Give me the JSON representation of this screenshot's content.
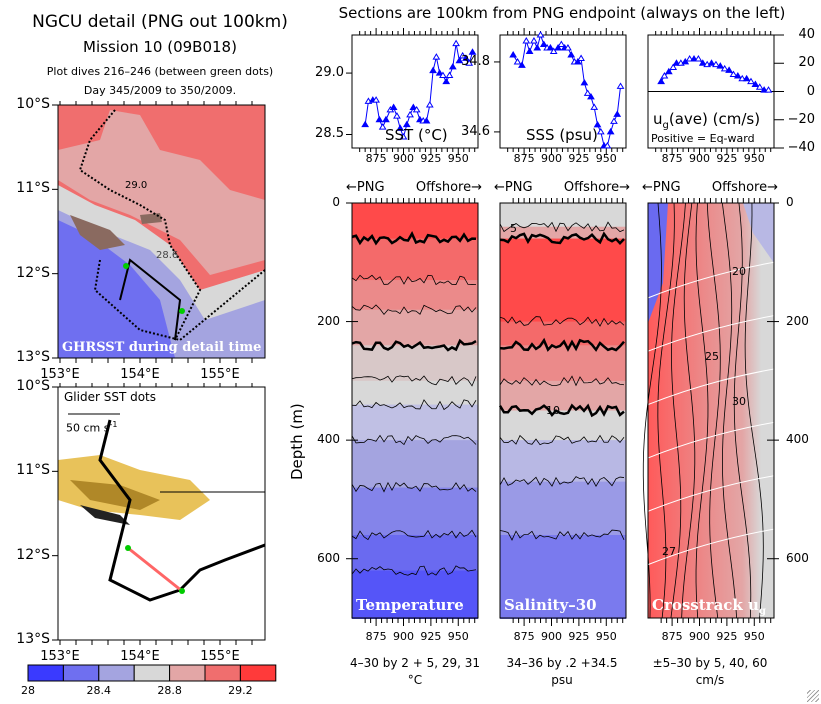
{
  "left": {
    "title": "NGCU detail (PNG out 100km)",
    "mission": "Mission 10 (09B018)",
    "dives": "Plot dives 216–246 (between green dots)",
    "days": "Day 345/2009 to 350/2009.",
    "lat_labels": [
      "10°S",
      "11°S",
      "12°S",
      "13°S"
    ],
    "lon_labels": [
      "153°E",
      "154°E",
      "155°E"
    ],
    "top_map_overlay": "GHRSST during detail time",
    "top_map_contour_labels": [
      "29.0",
      "28.6"
    ],
    "bottom_map_label": "Glider SST dots",
    "scale_label": "50 cm s",
    "scale_exp": "-1",
    "colorbar": {
      "labels": [
        "28",
        "28.4",
        "28.8",
        "29.2"
      ],
      "colors": [
        "#3a3aff",
        "#6f6ff0",
        "#a4a4e0",
        "#d8d8d8",
        "#e3a6a6",
        "#f06e6e",
        "#ff3a3a"
      ]
    }
  },
  "header": "Sections are 100km from PNG endpoint (always on the left)",
  "direction": {
    "left": "←PNG",
    "right": "Offshore→"
  },
  "chart_data": [
    {
      "type": "line",
      "title": "SST (°C)",
      "xlim": [
        853,
        968
      ],
      "ylim": [
        28.39,
        29.31
      ],
      "yticks": [
        "28.5",
        "29.0"
      ],
      "xticks": [
        "875",
        "900",
        "925",
        "950"
      ],
      "x": [
        865,
        868,
        872,
        875,
        878,
        881,
        884,
        888,
        891,
        894,
        897,
        900,
        903,
        906,
        909,
        912,
        915,
        918,
        921,
        924,
        927,
        930,
        933,
        936,
        939,
        942,
        945,
        948,
        951,
        954,
        957,
        960,
        963
      ],
      "y": [
        28.58,
        28.77,
        28.78,
        28.78,
        28.62,
        28.56,
        28.62,
        28.7,
        28.72,
        28.65,
        28.55,
        28.48,
        28.58,
        28.66,
        28.72,
        28.7,
        28.62,
        28.61,
        28.61,
        28.74,
        29.02,
        29.13,
        29.0,
        28.98,
        28.93,
        28.98,
        29.05,
        29.24,
        29.1,
        29.14,
        29.12,
        29.08,
        29.17
      ],
      "color": "#0000ff"
    },
    {
      "type": "line",
      "title": "SSS (psu)",
      "xlim": [
        853,
        968
      ],
      "ylim": [
        34.554,
        34.877
      ],
      "yticks": [
        "34.6",
        "34.8"
      ],
      "xticks": [
        "875",
        "900",
        "925",
        "950"
      ],
      "x": [
        865,
        869,
        873,
        877,
        880,
        884,
        887,
        890,
        893,
        896,
        899,
        902,
        906,
        909,
        912,
        915,
        918,
        921,
        924,
        927,
        930,
        933,
        936,
        939,
        942,
        945,
        948,
        951,
        954,
        957,
        960,
        963
      ],
      "y": [
        34.82,
        34.8,
        34.79,
        34.86,
        34.83,
        34.86,
        34.84,
        34.88,
        34.85,
        34.84,
        34.84,
        34.83,
        34.84,
        34.85,
        34.84,
        34.84,
        34.82,
        34.8,
        34.8,
        34.81,
        34.74,
        34.71,
        34.7,
        34.67,
        34.62,
        34.6,
        34.56,
        34.56,
        34.6,
        34.63,
        34.65,
        34.73
      ],
      "color": "#0000ff"
    },
    {
      "type": "line",
      "title": "u",
      "title_sub": "g",
      "title_rest": "(ave) (cm/s)",
      "note": "Positive = Eq-ward",
      "xlim": [
        853,
        968
      ],
      "ylim": [
        -40,
        40
      ],
      "yticks": [
        "40",
        "20",
        "0",
        "−20",
        "−40"
      ],
      "xticks": [
        "875",
        "900",
        "925",
        "950"
      ],
      "x": [
        865,
        868,
        872,
        876,
        879,
        883,
        887,
        891,
        895,
        899,
        903,
        907,
        911,
        915,
        919,
        923,
        927,
        931,
        935,
        939,
        943,
        947,
        951,
        955,
        959,
        963
      ],
      "y": [
        7,
        11,
        14,
        17,
        20,
        20,
        21,
        23,
        23,
        23,
        20,
        19,
        20,
        19,
        18,
        16,
        15,
        12,
        11,
        9,
        9,
        7,
        5,
        3,
        1,
        1
      ],
      "color": "#0000ff"
    }
  ],
  "sections": {
    "ylabel": "Depth (m)",
    "depth_ticks": [
      "0",
      "200",
      "400",
      "600"
    ],
    "xticks": [
      "875",
      "900",
      "925",
      "950"
    ],
    "panels": [
      {
        "label": "Temperature",
        "contours": "4–30 by 2 + 5, 29, 31",
        "units": "°C"
      },
      {
        "label": "Salinity–30",
        "contours": "34–36 by .2 +34.5",
        "units": "psu"
      },
      {
        "label": "Crosstrack u",
        "label_sub": "g",
        "contours": "±5–30 by 5, 40, 60",
        "units": "cm/s"
      }
    ],
    "contour_labels": [
      "5",
      "10",
      "20",
      "25",
      "30",
      "27"
    ]
  }
}
